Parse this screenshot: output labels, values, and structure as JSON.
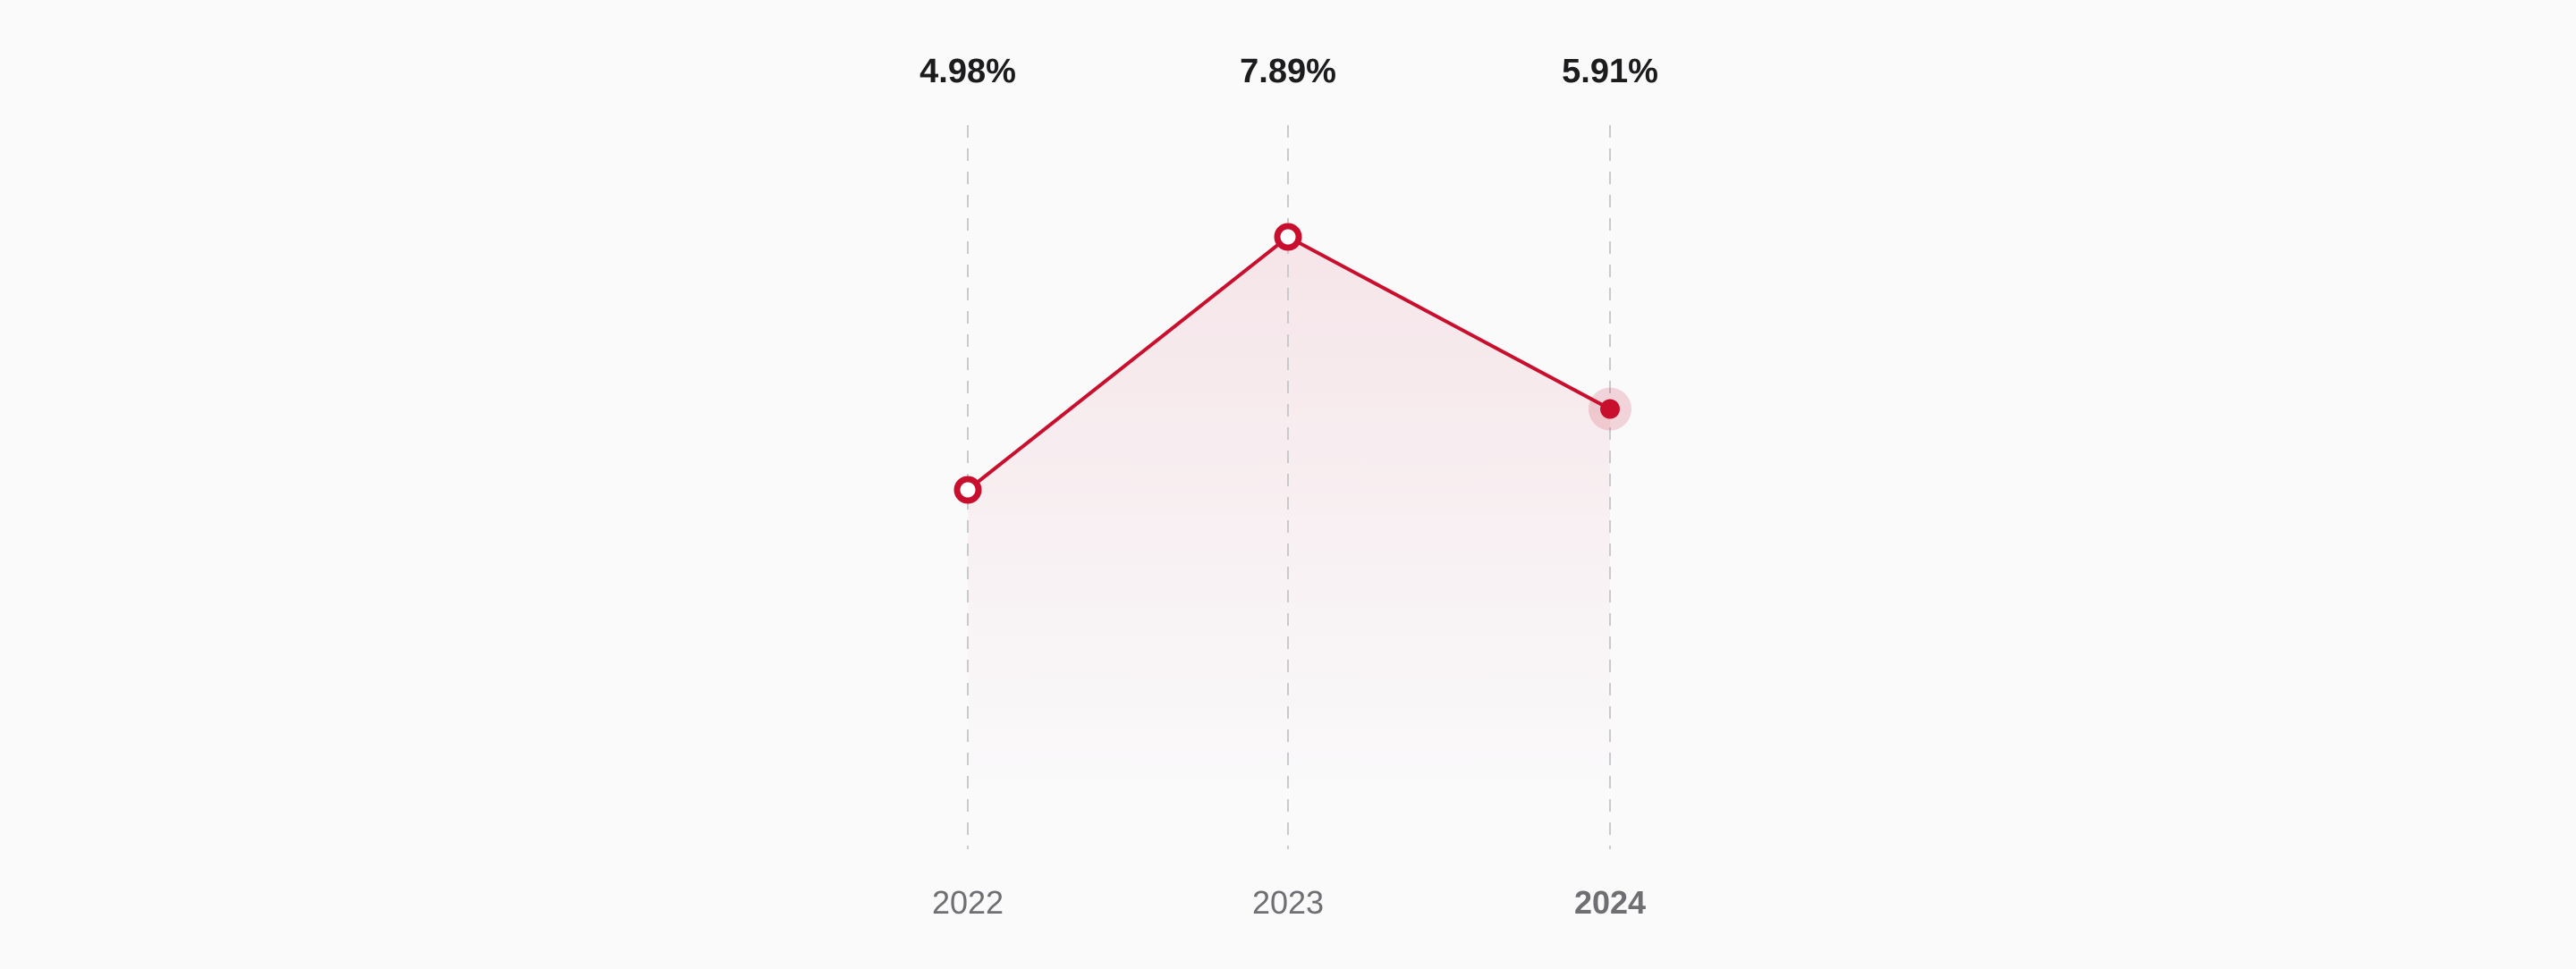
{
  "chart_data": {
    "type": "line",
    "categories": [
      "2022",
      "2023",
      "2024"
    ],
    "series": [
      {
        "values": [
          4.98,
          7.89,
          5.91
        ]
      }
    ],
    "data_labels": [
      "4.98%",
      "7.89%",
      "5.91%"
    ],
    "highlighted_category": "2024",
    "title": "",
    "xlabel": "",
    "ylabel": "",
    "ylim": [
      0,
      10
    ],
    "grid": "vertical dashed guides",
    "legend": "none"
  },
  "colors": {
    "accent": "#c8102e",
    "area_fill": "#c8102e",
    "guide": "#c9c9ce",
    "value_text": "#1c1c1e",
    "axis_text": "#6e6e73",
    "background": "#fafafb"
  }
}
